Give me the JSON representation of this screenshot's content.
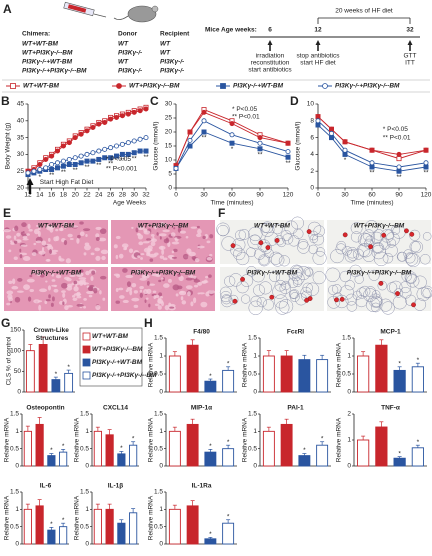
{
  "panel_labels": [
    "A",
    "B",
    "C",
    "D",
    "E",
    "F",
    "G",
    "H"
  ],
  "schema": {
    "chimera_header": [
      "Chimera:",
      "Donor",
      "Recipient"
    ],
    "chimeras": [
      [
        "WT+WT-BM",
        "WT",
        "WT"
      ],
      [
        "WT+PI3Kγ-/--BM",
        "PI3Kγ-/-",
        "WT"
      ],
      [
        "PI3Kγ-/-+WT-BM",
        "WT",
        "PI3Kγ-/-"
      ],
      [
        "PI3Kγ-/-+PI3Kγ-/--BM",
        "PI3Kγ-/-",
        "PI3Kγ-/-"
      ]
    ],
    "timeline": {
      "label": "Mice Age weeks:",
      "weeks": [
        6,
        12,
        32
      ],
      "span": "20 weeks of HF diet",
      "events": [
        [
          "irradiation",
          "reconstitution",
          "start antibiotics"
        ],
        [
          "stop antibiotics",
          "start HF diet"
        ],
        [
          "GTT",
          "ITT"
        ]
      ]
    }
  },
  "groups": [
    {
      "name": "WT+WT-BM",
      "color": "#c8262c",
      "marker": "square",
      "filled": false
    },
    {
      "name": "WT+PI3Kγ-/--BM",
      "color": "#c8262c",
      "marker": "circle",
      "filled": true
    },
    {
      "name": "PI3Kγ-/-+WT-BM",
      "color": "#2a55a0",
      "marker": "square",
      "filled": true
    },
    {
      "name": "PI3Kγ-/-+PI3Kγ-/--BM",
      "color": "#2a55a0",
      "marker": "circle",
      "filled": false
    }
  ],
  "liver_images": [
    "WT+WT-BM",
    "WT+PI3Kγ-/--BM",
    "PI3Kγ-/-+WT-BM",
    "PI3Kγ-/-+PI3Kγ-/--BM"
  ],
  "adipose_images": [
    "WT+WT-BM",
    "WT+PI3Kγ-/--BM",
    "PI3Kγ-/-+WT-BM",
    "PI3Kγ-/-+PI3Kγ-/--BM"
  ],
  "chart_data": [
    {
      "type": "line",
      "ylabel": "Body Weight (g)",
      "xlabel": "Age Weeks",
      "x": [
        12,
        13,
        14,
        15,
        16,
        17,
        18,
        19,
        20,
        21,
        22,
        23,
        24,
        25,
        26,
        27,
        28,
        29,
        30,
        31,
        32
      ],
      "xlim": [
        12,
        32
      ],
      "xticks": [
        12,
        14,
        16,
        18,
        20,
        22,
        24,
        26,
        28,
        30,
        32
      ],
      "ylim": [
        20,
        45
      ],
      "yticks": [
        20,
        25,
        30,
        35,
        40,
        45
      ],
      "annotations": [
        "Start High Fat Diet",
        "* P<0.05",
        "** P<0.001"
      ],
      "series": [
        {
          "values": [
            25,
            26,
            27.5,
            29,
            30,
            31.5,
            33,
            34,
            35.5,
            36.5,
            37.5,
            38.5,
            39.5,
            40,
            41,
            41.5,
            42,
            42.5,
            43,
            43.5,
            44
          ]
        },
        {
          "values": [
            25,
            25.5,
            27,
            28.5,
            29.5,
            31,
            32.5,
            33.5,
            35,
            36,
            37,
            38,
            39,
            39.5,
            40.5,
            41,
            41.5,
            42,
            42.5,
            43,
            43.5
          ]
        },
        {
          "values": [
            24,
            24.5,
            25,
            25.5,
            25.5,
            26,
            26.5,
            27,
            27,
            27.5,
            28,
            28,
            28.5,
            29,
            29,
            29.5,
            30,
            30,
            30.5,
            31,
            31
          ],
          "significance": [
            null,
            null,
            "*",
            null,
            "**",
            null,
            "**",
            null,
            "**",
            null,
            "**",
            null,
            "**",
            null,
            "**",
            null,
            "**",
            null,
            "**",
            null,
            "**"
          ]
        },
        {
          "values": [
            24.5,
            25,
            25.5,
            26,
            27,
            27.5,
            28,
            28.5,
            29,
            29.5,
            30,
            30.5,
            31,
            31.5,
            32,
            32.5,
            33,
            33.5,
            34,
            34.5,
            35
          ]
        }
      ]
    },
    {
      "type": "line",
      "ylabel": "Glucose (mmol/l)",
      "xlabel": "Time (minutes)",
      "x": [
        0,
        15,
        30,
        60,
        90,
        120
      ],
      "xlim": [
        0,
        120
      ],
      "xticks": [
        0,
        30,
        60,
        90,
        120
      ],
      "ylim": [
        0,
        30
      ],
      "yticks": [
        0,
        5,
        10,
        15,
        20,
        25,
        30
      ],
      "annotations": [
        "* P<0.05",
        "** P<0.01"
      ],
      "series": [
        {
          "values": [
            8,
            20,
            28,
            24,
            19,
            16
          ]
        },
        {
          "values": [
            8,
            20,
            27,
            23,
            18,
            16
          ]
        },
        {
          "values": [
            7,
            15,
            20,
            16,
            14,
            11
          ],
          "significance": [
            null,
            null,
            "**",
            "*",
            "**",
            "**"
          ]
        },
        {
          "values": [
            7,
            17,
            24,
            19,
            16,
            13
          ]
        }
      ]
    },
    {
      "type": "line",
      "ylabel": "Glucose (mmol/l)",
      "xlabel": "Time (minutes)",
      "x": [
        0,
        15,
        30,
        60,
        90,
        120
      ],
      "xlim": [
        0,
        120
      ],
      "xticks": [
        0,
        30,
        60,
        90,
        120
      ],
      "ylim": [
        0,
        10
      ],
      "yticks": [
        0,
        2,
        4,
        6,
        8,
        10
      ],
      "annotations": [
        "* P<0.05",
        "** P<0.01"
      ],
      "series": [
        {
          "values": [
            8.5,
            7,
            5.5,
            4.5,
            3.5,
            4.5
          ]
        },
        {
          "values": [
            8.5,
            7,
            5.5,
            4.5,
            4,
            4.5
          ]
        },
        {
          "values": [
            7.5,
            6,
            4,
            2.5,
            2,
            2.5
          ],
          "significance": [
            null,
            null,
            "*",
            "**",
            "**",
            "**"
          ]
        },
        {
          "values": [
            8,
            6.5,
            4.5,
            3,
            2.5,
            3
          ]
        }
      ]
    },
    {
      "type": "bar",
      "title": "Crown-Like Structures",
      "ylabel": "CLS % of control",
      "ylim": [
        0,
        150
      ],
      "yticks": [
        0,
        50,
        100,
        150
      ],
      "values": [
        100,
        115,
        30,
        45
      ],
      "errors": [
        15,
        18,
        6,
        8
      ],
      "significance": [
        null,
        null,
        "*",
        "*"
      ]
    },
    {
      "type": "bar",
      "title": "Osteopontin",
      "ylabel": "Relative mRNA",
      "ylim": [
        0,
        1.5
      ],
      "yticks": [
        0,
        0.5,
        1,
        1.5
      ],
      "values": [
        1,
        1.2,
        0.3,
        0.4
      ],
      "errors": [
        0.15,
        0.2,
        0.06,
        0.08
      ],
      "significance": [
        null,
        null,
        "*",
        "*"
      ]
    },
    {
      "type": "bar",
      "title": "CXCL14",
      "ylabel": "Relative mRNA",
      "ylim": [
        0,
        1.5
      ],
      "yticks": [
        0,
        0.5,
        1,
        1.5
      ],
      "values": [
        1,
        0.9,
        0.35,
        0.6
      ],
      "errors": [
        0.12,
        0.15,
        0.07,
        0.1
      ],
      "significance": [
        null,
        null,
        "*",
        "*"
      ]
    },
    {
      "type": "bar",
      "title": "IL-6",
      "ylabel": "Relative mRNA",
      "ylim": [
        0,
        1.5
      ],
      "yticks": [
        0,
        0.5,
        1,
        1.5
      ],
      "values": [
        1,
        1.1,
        0.4,
        0.5
      ],
      "errors": [
        0.15,
        0.18,
        0.08,
        0.1
      ],
      "significance": [
        null,
        null,
        "*",
        "*"
      ]
    },
    {
      "type": "bar",
      "title": "IL-1β",
      "ylabel": "Relative mRNA",
      "ylim": [
        0,
        1.5
      ],
      "yticks": [
        0,
        0.5,
        1,
        1.5
      ],
      "values": [
        1,
        1,
        0.6,
        0.9
      ],
      "errors": [
        0.15,
        0.15,
        0.1,
        0.12
      ],
      "significance": [
        null,
        null,
        null,
        null
      ]
    },
    {
      "type": "bar",
      "title": "F4/80",
      "ylabel": "Relative mRNA",
      "ylim": [
        0,
        1.5
      ],
      "yticks": [
        0,
        0.5,
        1,
        1.5
      ],
      "values": [
        1,
        1.3,
        0.3,
        0.6
      ],
      "errors": [
        0.12,
        0.15,
        0.06,
        0.1
      ],
      "significance": [
        null,
        null,
        "*",
        "*"
      ]
    },
    {
      "type": "bar",
      "title": "FcεRI",
      "ylabel": "Relative mRNA",
      "ylim": [
        0,
        1.5
      ],
      "yticks": [
        0,
        0.5,
        1,
        1.5
      ],
      "values": [
        1,
        1,
        0.9,
        0.9
      ],
      "errors": [
        0.15,
        0.15,
        0.12,
        0.12
      ],
      "significance": [
        null,
        null,
        null,
        null
      ]
    },
    {
      "type": "bar",
      "title": "MCP-1",
      "ylabel": "Relative mRNA",
      "ylim": [
        0,
        1.5
      ],
      "yticks": [
        0,
        0.5,
        1,
        1.5
      ],
      "values": [
        1,
        1.3,
        0.6,
        0.7
      ],
      "errors": [
        0.12,
        0.15,
        0.1,
        0.1
      ],
      "significance": [
        null,
        null,
        "*",
        "*"
      ]
    },
    {
      "type": "bar",
      "title": "MIP-1α",
      "ylabel": "Relative mRNA",
      "ylim": [
        0,
        1.5
      ],
      "yticks": [
        0,
        0.5,
        1,
        1.5
      ],
      "values": [
        1,
        1.2,
        0.4,
        0.5
      ],
      "errors": [
        0.12,
        0.15,
        0.08,
        0.1
      ],
      "significance": [
        null,
        null,
        "*",
        "*"
      ]
    },
    {
      "type": "bar",
      "title": "PAI-1",
      "ylabel": "Relative mRNA",
      "ylim": [
        0,
        1.5
      ],
      "yticks": [
        0,
        0.5,
        1,
        1.5
      ],
      "values": [
        1,
        1.2,
        0.3,
        0.6
      ],
      "errors": [
        0.12,
        0.15,
        0.06,
        0.1
      ],
      "significance": [
        null,
        null,
        "*",
        "*"
      ]
    },
    {
      "type": "bar",
      "title": "TNF-α",
      "ylabel": "Relative mRNA",
      "ylim": [
        0,
        2
      ],
      "yticks": [
        0,
        1,
        2
      ],
      "values": [
        1,
        1.5,
        0.3,
        0.7
      ],
      "errors": [
        0.15,
        0.2,
        0.06,
        0.1
      ],
      "significance": [
        null,
        null,
        "*",
        "*"
      ]
    },
    {
      "type": "bar",
      "title": "IL-1Ra",
      "ylabel": "Relative mRNA",
      "ylim": [
        0,
        1.5
      ],
      "yticks": [
        0,
        0.5,
        1,
        1.5
      ],
      "values": [
        1,
        1.1,
        0.15,
        0.6
      ],
      "errors": [
        0.12,
        0.15,
        0.04,
        0.1
      ],
      "significance": [
        null,
        null,
        "*",
        "*"
      ]
    }
  ]
}
